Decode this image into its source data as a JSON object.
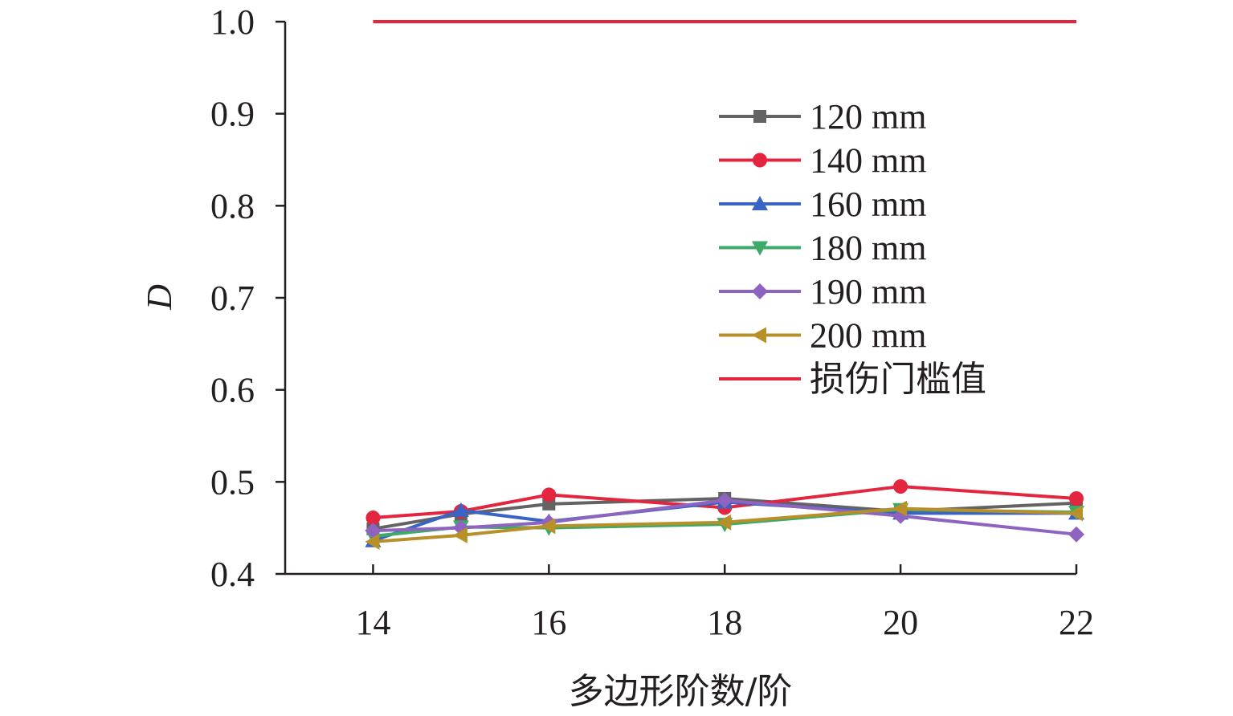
{
  "chart_data": {
    "type": "line",
    "xlabel": "多边形阶数/阶",
    "ylabel": "D",
    "x": [
      14,
      15,
      16,
      18,
      20,
      22
    ],
    "xlim": [
      13,
      22
    ],
    "xticks": [
      14,
      16,
      18,
      20,
      22
    ],
    "ylim": [
      0.4,
      1.0
    ],
    "yticks": [
      "0.4",
      "0.5",
      "0.6",
      "0.7",
      "0.8",
      "0.9",
      "1.0"
    ],
    "grid": false,
    "legend_position": "right",
    "series": [
      {
        "name": "120 mm",
        "color": "#636363",
        "marker": "square",
        "values": [
          0.449,
          0.465,
          0.476,
          0.482,
          0.468,
          0.477
        ]
      },
      {
        "name": "140 mm",
        "color": "#e3253f",
        "marker": "circle",
        "values": [
          0.461,
          0.468,
          0.486,
          0.472,
          0.495,
          0.482
        ]
      },
      {
        "name": "160 mm",
        "color": "#3a64c4",
        "marker": "triangle-up",
        "values": [
          0.436,
          0.469,
          0.457,
          0.478,
          0.466,
          0.466
        ]
      },
      {
        "name": "180 mm",
        "color": "#3daa68",
        "marker": "triangle-down",
        "values": [
          0.441,
          0.451,
          0.45,
          0.454,
          0.47,
          0.467
        ]
      },
      {
        "name": "190 mm",
        "color": "#8f64c0",
        "marker": "diamond",
        "values": [
          0.447,
          0.45,
          0.456,
          0.48,
          0.463,
          0.443
        ]
      },
      {
        "name": "200 mm",
        "color": "#b8902a",
        "marker": "triangle-left",
        "values": [
          0.435,
          0.442,
          0.452,
          0.456,
          0.471,
          0.466
        ]
      }
    ],
    "threshold": {
      "name": "损伤门槛值",
      "color": "#e3253f",
      "value": 1.0,
      "x_range": [
        14,
        22
      ]
    }
  }
}
